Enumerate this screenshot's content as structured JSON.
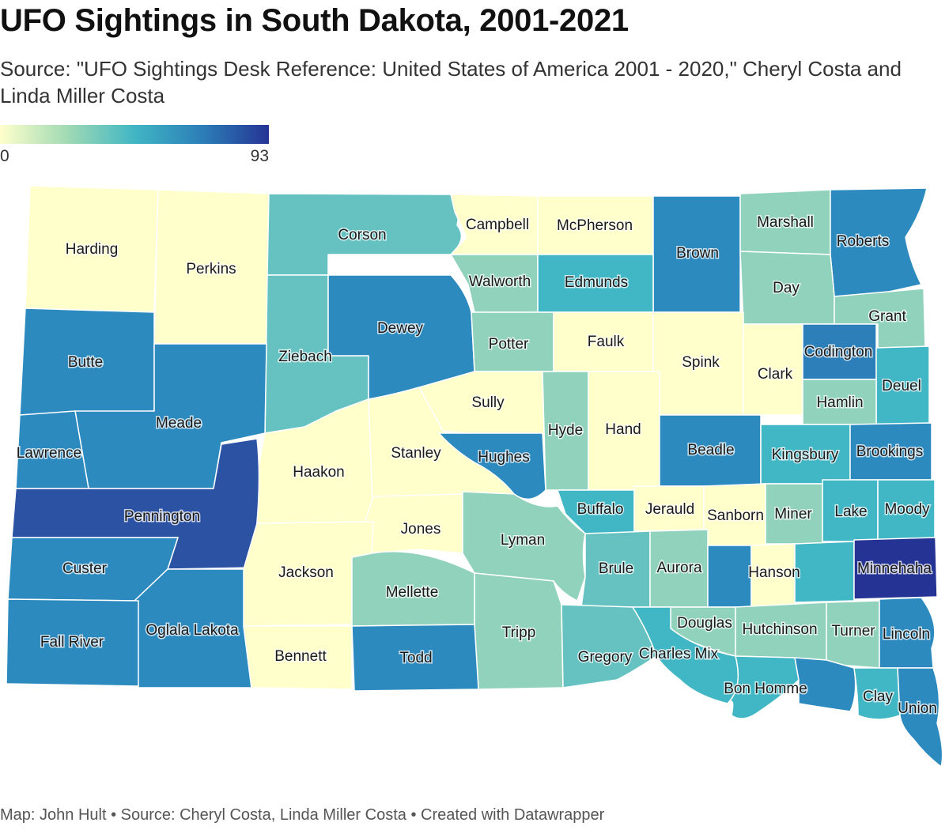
{
  "title": "UFO Sightings in South Dakota, 2001-2021",
  "subtitle": "Source: \"UFO Sightings Desk Reference: United States of America 2001 - 2020,\" Cheryl Costa and Linda Miller Costa",
  "legend": {
    "min": "0",
    "max": "93",
    "colors": [
      "#ffffcc",
      "#a1dab4",
      "#41b6c4",
      "#2c7fb8",
      "#253494"
    ]
  },
  "counties": {
    "harding": "Harding",
    "perkins": "Perkins",
    "corson": "Corson",
    "campbell": "Campbell",
    "mcpherson": "McPherson",
    "brown": "Brown",
    "marshall": "Marshall",
    "roberts": "Roberts",
    "walworth": "Walworth",
    "edmunds": "Edmunds",
    "day": "Day",
    "grant": "Grant",
    "butte": "Butte",
    "ziebach": "Ziebach",
    "dewey": "Dewey",
    "potter": "Potter",
    "faulk": "Faulk",
    "spink": "Spink",
    "clark": "Clark",
    "codington": "Codington",
    "deuel": "Deuel",
    "hamlin": "Hamlin",
    "meade": "Meade",
    "sully": "Sully",
    "hyde": "Hyde",
    "hand": "Hand",
    "beadle": "Beadle",
    "kingsbury": "Kingsbury",
    "brookings": "Brookings",
    "lawrence": "Lawrence",
    "haakon": "Haakon",
    "stanley": "Stanley",
    "hughes": "Hughes",
    "pennington": "Pennington",
    "buffalo": "Buffalo",
    "jerauld": "Jerauld",
    "sanborn": "Sanborn",
    "miner": "Miner",
    "lake": "Lake",
    "moody": "Moody",
    "jones": "Jones",
    "lyman": "Lyman",
    "custer": "Custer",
    "jackson": "Jackson",
    "brule": "Brule",
    "aurora": "Aurora",
    "hanson": "Hanson",
    "minnehaha": "Minnehaha",
    "mellette": "Mellette",
    "oglala_lakota": "Oglala Lakota",
    "fall_river": "Fall River",
    "tripp": "Tripp",
    "douglas": "Douglas",
    "hutchinson": "Hutchinson",
    "turner": "Turner",
    "lincoln": "Lincoln",
    "bennett": "Bennett",
    "todd": "Todd",
    "gregory": "Gregory",
    "charles_mix": "Charles Mix",
    "bon_homme": "Bon Homme",
    "clay": "Clay",
    "union": "Union"
  },
  "footer": "Map: John Hult • Source: Cheryl Costa, Linda Miller Costa • Created with Datawrapper"
}
